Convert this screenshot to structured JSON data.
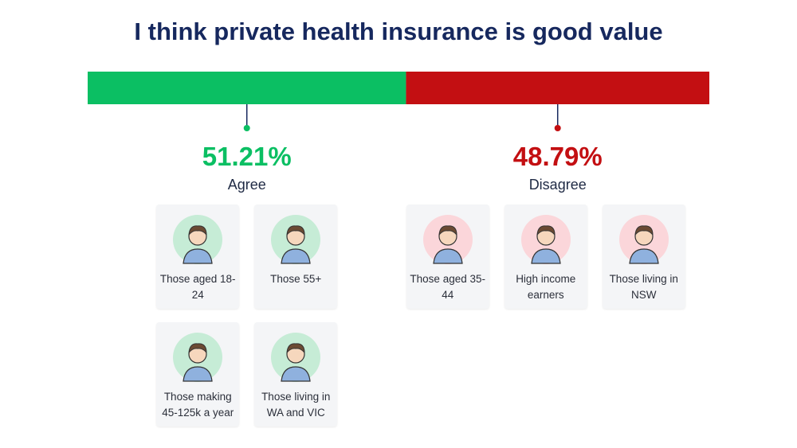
{
  "chart_data": {
    "type": "stacked-bar",
    "title": "I think private health insurance is good value",
    "series": [
      {
        "name": "Agree",
        "color": "#0bbf63",
        "values": [
          51.21
        ],
        "value_labels": [
          "51.21%"
        ],
        "highlights": [
          "Those aged 18-24",
          "Those 55+",
          "Those making 45-125k a year",
          "Those living in WA and VIC"
        ]
      },
      {
        "name": "Disagree",
        "color": "#c30f12",
        "values": [
          48.79
        ],
        "value_labels": [
          "48.79%"
        ],
        "highlights": [
          "Those aged 35-44",
          "High income earners",
          "Those living in NSW"
        ]
      }
    ]
  }
}
